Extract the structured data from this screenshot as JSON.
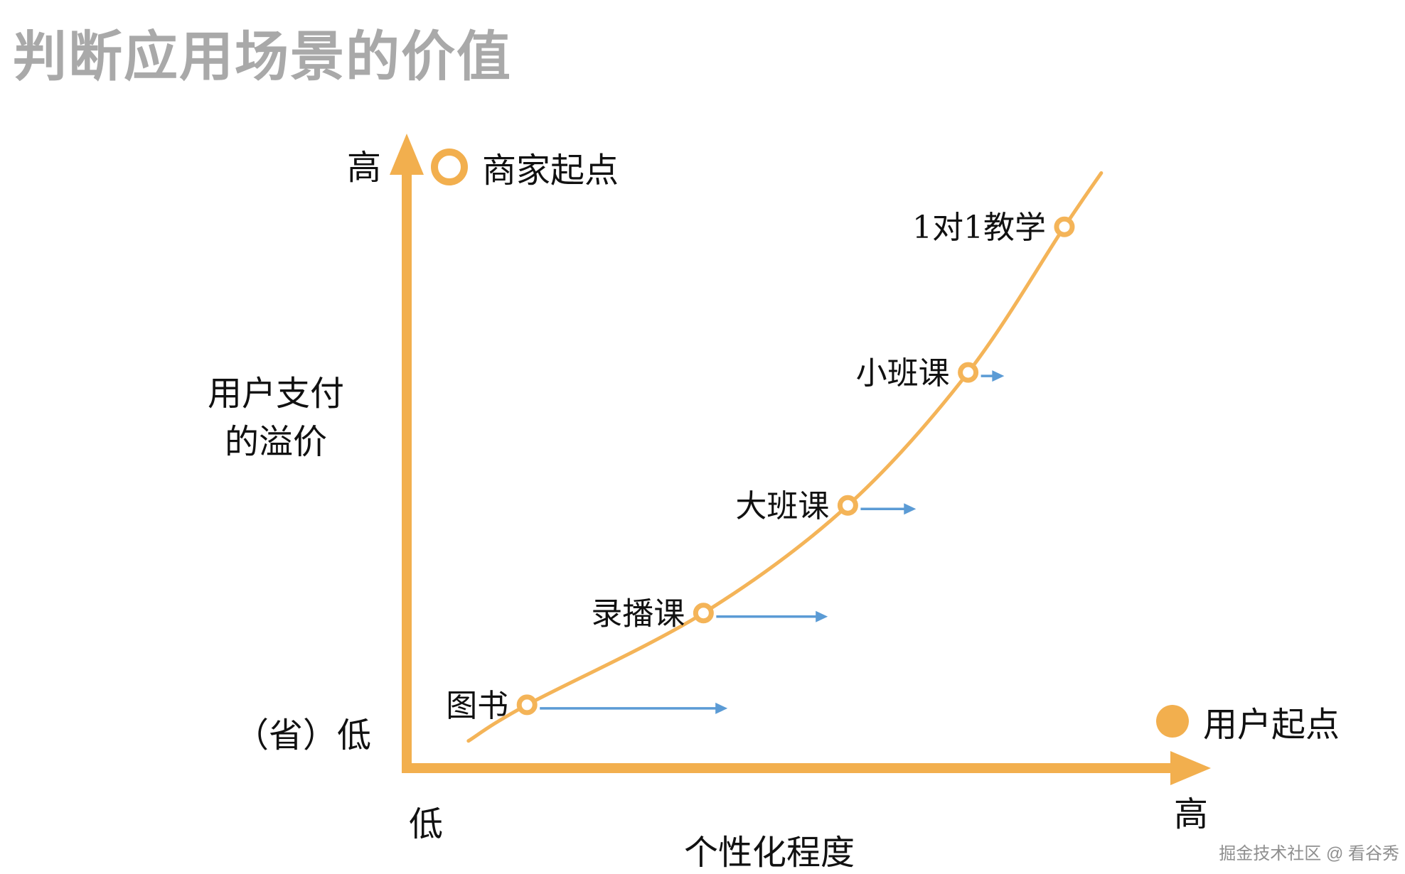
{
  "page": {
    "watermark": "掘金技术社区 @ 看谷秀"
  },
  "chart_data": {
    "type": "scatter",
    "title": "判断应用场景的价值",
    "xlabel": "个性化程度",
    "ylabel": "用户支付的溢价",
    "ylabel_lines": [
      "用户支付",
      "的溢价"
    ],
    "x_axis": {
      "min_label": "低",
      "max_label": "高"
    },
    "y_axis": {
      "min_label": "（省）低",
      "max_label": "高"
    },
    "xlim": [
      0,
      1
    ],
    "ylim": [
      0,
      1
    ],
    "grid": false,
    "axis_color": "#F2AF4E",
    "curve_color": "#F4B458",
    "arrow_color": "#5B9BD5",
    "points": [
      {
        "label": "图书",
        "x": 0.15,
        "y": 0.1,
        "arrow_dx": 0.25
      },
      {
        "label": "录播课",
        "x": 0.37,
        "y": 0.245,
        "arrow_dx": 0.155
      },
      {
        "label": "大班课",
        "x": 0.55,
        "y": 0.415,
        "arrow_dx": 0.085
      },
      {
        "label": "小班课",
        "x": 0.7,
        "y": 0.625,
        "arrow_dx": 0.045
      },
      {
        "label": "1对1教学",
        "x": 0.82,
        "y": 0.855,
        "arrow_dx": 0
      }
    ],
    "curve_start": {
      "x": 0.077,
      "y": 0.043
    },
    "curve_end": {
      "x": 0.866,
      "y": 0.94
    },
    "legend": [
      {
        "label": "商家起点",
        "marker": "ring",
        "position": "top-left"
      },
      {
        "label": "用户起点",
        "marker": "solid",
        "position": "bottom-right"
      }
    ]
  }
}
